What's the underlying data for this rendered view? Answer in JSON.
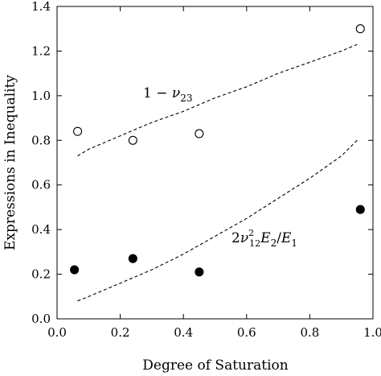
{
  "chart_data": {
    "type": "scatter",
    "xlabel": "Degree of Saturation",
    "ylabel": "Expressions in Inequality",
    "xlim": [
      0.0,
      1.0
    ],
    "ylim": [
      0.0,
      1.4
    ],
    "x_ticks": [
      0.0,
      0.2,
      0.4,
      0.6,
      0.8,
      1.0
    ],
    "y_ticks": [
      0.0,
      0.2,
      0.4,
      0.6,
      0.8,
      1.0,
      1.2,
      1.4
    ],
    "x_tick_labels": [
      "0.0",
      "0.2",
      "0.4",
      "0.6",
      "0.8",
      "1.0"
    ],
    "y_tick_labels": [
      "0.0",
      "0.2",
      "0.4",
      "0.6",
      "0.8",
      "1.0",
      "1.2",
      "1.4"
    ],
    "grid": false,
    "series": [
      {
        "marker": "open-circle",
        "x": [
          0.065,
          0.24,
          0.45,
          0.96
        ],
        "y": [
          0.84,
          0.8,
          0.83,
          1.3
        ]
      },
      {
        "marker": "filled-circle",
        "x": [
          0.055,
          0.24,
          0.45,
          0.96
        ],
        "y": [
          0.22,
          0.27,
          0.21,
          0.49
        ]
      }
    ],
    "curves": [
      {
        "style": "dashed",
        "x": [
          0.065,
          0.1,
          0.2,
          0.3,
          0.4,
          0.5,
          0.6,
          0.7,
          0.8,
          0.9,
          0.95
        ],
        "y": [
          0.73,
          0.76,
          0.82,
          0.88,
          0.93,
          0.99,
          1.04,
          1.1,
          1.15,
          1.2,
          1.23
        ]
      },
      {
        "style": "dashed",
        "x": [
          0.065,
          0.1,
          0.2,
          0.3,
          0.4,
          0.5,
          0.6,
          0.7,
          0.8,
          0.9,
          0.95
        ],
        "y": [
          0.08,
          0.1,
          0.16,
          0.22,
          0.29,
          0.37,
          0.45,
          0.54,
          0.63,
          0.73,
          0.8
        ]
      }
    ],
    "annotations": [
      {
        "text_parts": [
          "1 − ",
          "ν",
          "23"
        ],
        "at": [
          0.36,
          1.04
        ]
      },
      {
        "text_parts": [
          "2",
          "ν",
          "2",
          "12",
          "E",
          "2",
          "/",
          "E",
          "1"
        ],
        "at": [
          0.68,
          0.37
        ]
      }
    ],
    "colors": {
      "axis": "#000000",
      "marker": "#000000",
      "background": "#ffffff"
    }
  }
}
